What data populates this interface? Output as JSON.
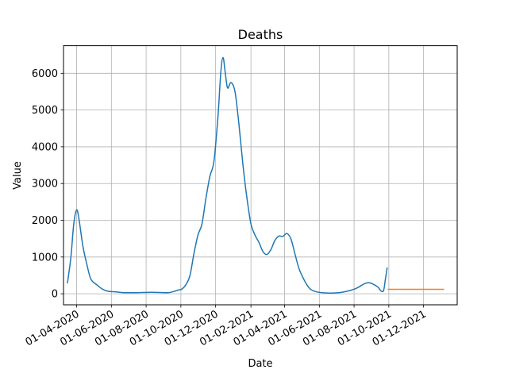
{
  "chart_data": {
    "type": "line",
    "title": "Deaths",
    "xlabel": "Date",
    "ylabel": "Value",
    "grid": true,
    "legend": "none",
    "xlim": [
      "2020-03-09",
      "2022-01-29"
    ],
    "ylim": [
      -300,
      6750
    ],
    "x_ticks": [
      "01-04-2020",
      "01-06-2020",
      "01-08-2020",
      "01-10-2020",
      "01-12-2020",
      "01-02-2021",
      "01-04-2021",
      "01-06-2021",
      "01-08-2021",
      "01-10-2021",
      "01-12-2021"
    ],
    "y_ticks": [
      0,
      1000,
      2000,
      3000,
      4000,
      5000,
      6000
    ],
    "series": [
      {
        "color": "#1f77b4",
        "points": [
          [
            "2020-03-16",
            300
          ],
          [
            "2020-03-22",
            1000
          ],
          [
            "2020-03-27",
            1900
          ],
          [
            "2020-04-01",
            2280
          ],
          [
            "2020-04-05",
            2050
          ],
          [
            "2020-04-12",
            1300
          ],
          [
            "2020-04-19",
            800
          ],
          [
            "2020-04-26",
            400
          ],
          [
            "2020-05-06",
            250
          ],
          [
            "2020-05-16",
            130
          ],
          [
            "2020-05-26",
            70
          ],
          [
            "2020-06-09",
            50
          ],
          [
            "2020-06-23",
            30
          ],
          [
            "2020-07-14",
            30
          ],
          [
            "2020-08-11",
            40
          ],
          [
            "2020-09-08",
            30
          ],
          [
            "2020-09-18",
            60
          ],
          [
            "2020-09-26",
            100
          ],
          [
            "2020-10-03",
            130
          ],
          [
            "2020-10-10",
            250
          ],
          [
            "2020-10-17",
            500
          ],
          [
            "2020-10-24",
            1100
          ],
          [
            "2020-10-31",
            1600
          ],
          [
            "2020-11-07",
            1900
          ],
          [
            "2020-11-14",
            2600
          ],
          [
            "2020-11-21",
            3200
          ],
          [
            "2020-11-28",
            3600
          ],
          [
            "2020-12-05",
            4800
          ],
          [
            "2020-12-10",
            6000
          ],
          [
            "2020-12-14",
            6430
          ],
          [
            "2020-12-18",
            6000
          ],
          [
            "2020-12-22",
            5600
          ],
          [
            "2020-12-28",
            5750
          ],
          [
            "2021-01-04",
            5500
          ],
          [
            "2021-01-11",
            4600
          ],
          [
            "2021-01-18",
            3500
          ],
          [
            "2021-01-25",
            2600
          ],
          [
            "2021-02-01",
            1900
          ],
          [
            "2021-02-08",
            1600
          ],
          [
            "2021-02-15",
            1400
          ],
          [
            "2021-02-22",
            1150
          ],
          [
            "2021-03-01",
            1070
          ],
          [
            "2021-03-08",
            1200
          ],
          [
            "2021-03-15",
            1450
          ],
          [
            "2021-03-22",
            1570
          ],
          [
            "2021-03-29",
            1560
          ],
          [
            "2021-04-05",
            1640
          ],
          [
            "2021-04-12",
            1500
          ],
          [
            "2021-04-19",
            1100
          ],
          [
            "2021-04-26",
            700
          ],
          [
            "2021-05-03",
            450
          ],
          [
            "2021-05-10",
            250
          ],
          [
            "2021-05-17",
            120
          ],
          [
            "2021-05-28",
            50
          ],
          [
            "2021-06-15",
            20
          ],
          [
            "2021-07-05",
            30
          ],
          [
            "2021-07-20",
            70
          ],
          [
            "2021-08-05",
            150
          ],
          [
            "2021-08-20",
            280
          ],
          [
            "2021-08-28",
            300
          ],
          [
            "2021-09-05",
            250
          ],
          [
            "2021-09-12",
            180
          ],
          [
            "2021-09-18",
            70
          ],
          [
            "2021-09-22",
            100
          ],
          [
            "2021-09-25",
            400
          ],
          [
            "2021-09-28",
            700
          ]
        ]
      },
      {
        "color": "#ff7f0e",
        "points": [
          [
            "2021-09-30",
            120
          ],
          [
            "2022-01-05",
            120
          ]
        ]
      }
    ]
  }
}
